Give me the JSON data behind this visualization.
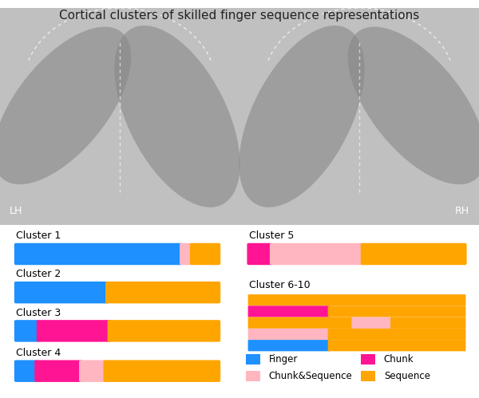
{
  "title": "Cortical clusters of skilled finger sequence representations",
  "title_fontsize": 11,
  "colors": {
    "finger": "#1E90FF",
    "chunk": "#FF1493",
    "chunk_seq": "#FFB6C1",
    "sequence": "#FFA500"
  },
  "clusters_left": [
    {
      "name": "Cluster 1",
      "bars": [
        {
          "type": "finger",
          "val": 0.8
        },
        {
          "type": "chunk_seq",
          "val": 0.05
        },
        {
          "type": "sequence",
          "val": 0.13
        }
      ]
    },
    {
      "name": "Cluster 2",
      "bars": [
        {
          "type": "finger",
          "val": 0.45
        },
        {
          "type": "sequence",
          "val": 0.55
        }
      ]
    },
    {
      "name": "Cluster 3",
      "bars": [
        {
          "type": "finger",
          "val": 0.11
        },
        {
          "type": "chunk",
          "val": 0.35
        },
        {
          "type": "sequence",
          "val": 0.54
        }
      ]
    },
    {
      "name": "Cluster 4",
      "bars": [
        {
          "type": "finger",
          "val": 0.1
        },
        {
          "type": "chunk",
          "val": 0.22
        },
        {
          "type": "chunk_seq",
          "val": 0.12
        },
        {
          "type": "sequence",
          "val": 0.56
        }
      ]
    }
  ],
  "clusters_right": [
    {
      "name": "Cluster 5",
      "bars": [
        {
          "type": "chunk",
          "val": 0.1
        },
        {
          "type": "chunk_seq",
          "val": 0.4
        },
        {
          "type": "sequence",
          "val": 0.45
        }
      ]
    },
    {
      "name": "Cluster 6-10",
      "multi": [
        [
          {
            "type": "sequence",
            "val": 1.0
          }
        ],
        [
          {
            "type": "chunk",
            "val": 0.37
          },
          {
            "type": "sequence",
            "val": 0.63
          }
        ],
        [
          {
            "type": "sequence",
            "val": 0.48
          },
          {
            "type": "chunk_seq",
            "val": 0.18
          },
          {
            "type": "sequence",
            "val": 0.34
          }
        ],
        [
          {
            "type": "chunk_seq",
            "val": 0.37
          },
          {
            "type": "sequence",
            "val": 0.63
          }
        ],
        [
          {
            "type": "finger",
            "val": 0.37
          },
          {
            "type": "sequence",
            "val": 0.63
          }
        ]
      ]
    }
  ],
  "legend_col1": [
    {
      "label": "Finger",
      "color": "#1E90FF"
    },
    {
      "label": "Chunk&Sequence",
      "color": "#FFB6C1"
    }
  ],
  "legend_col2": [
    {
      "label": "Chunk",
      "color": "#FF1493"
    },
    {
      "label": "Sequence",
      "color": "#FFA500"
    }
  ]
}
